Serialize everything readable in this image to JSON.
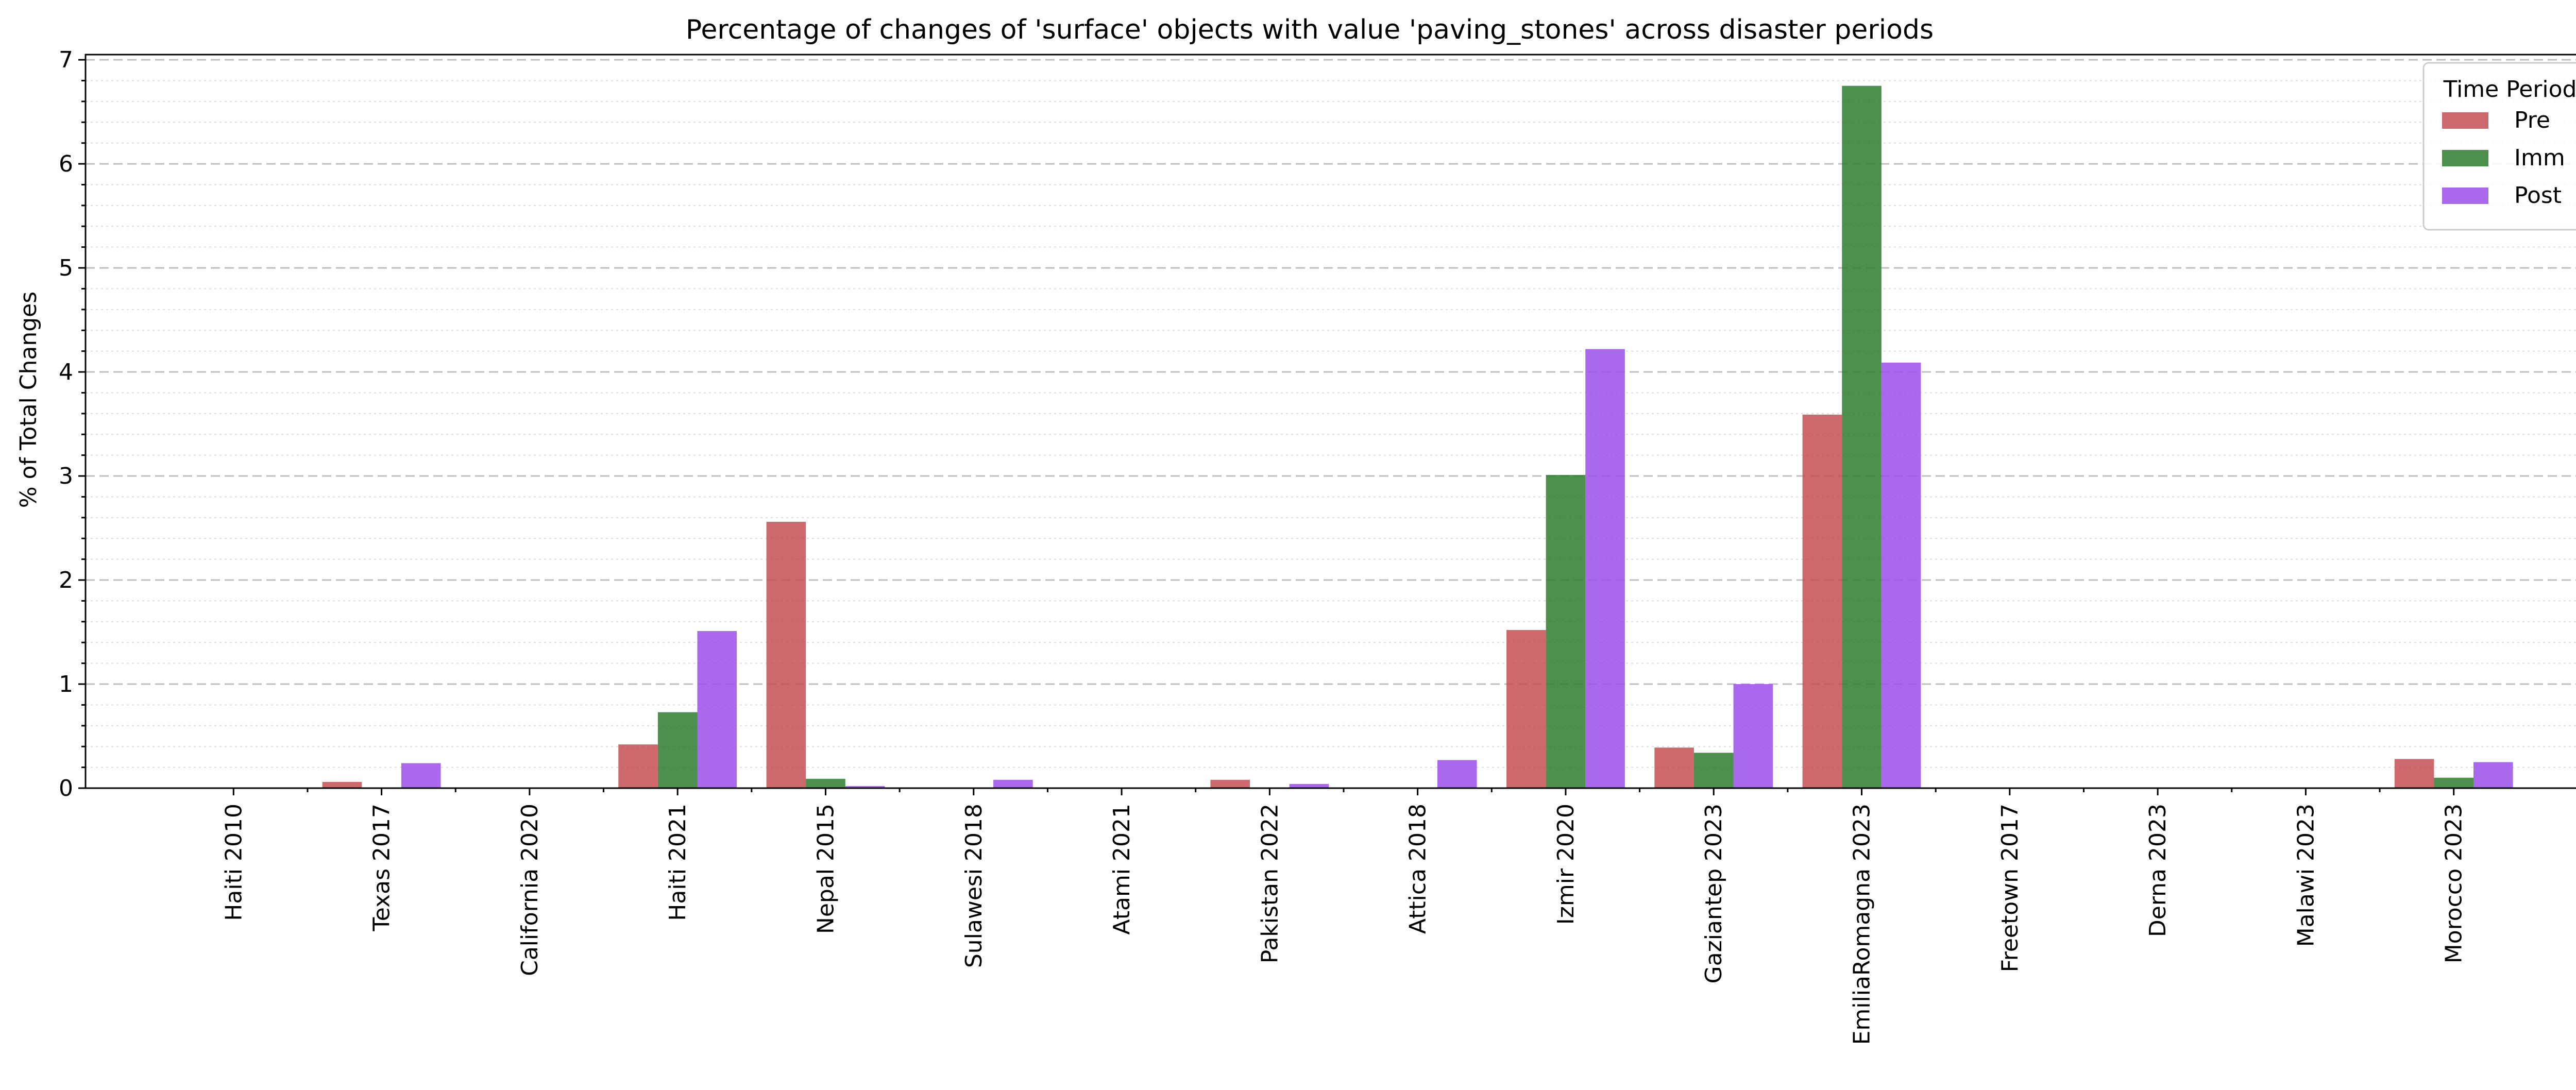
{
  "chart_data": {
    "type": "bar",
    "title": "Percentage of changes of 'surface' objects with value 'paving_stones' across disaster periods",
    "xlabel": "",
    "ylabel": "% of Total Changes",
    "ylim": [
      0,
      7.05
    ],
    "yticks": [
      0,
      1,
      2,
      3,
      4,
      5,
      6,
      7
    ],
    "grid": true,
    "legend_title": "Time Period",
    "legend_position": "top-right",
    "categories": [
      "Haiti 2010",
      "Texas 2017",
      "California 2020",
      "Haiti 2021",
      "Nepal 2015",
      "Sulawesi 2018",
      "Atami 2021",
      "Pakistan 2022",
      "Attica 2018",
      "Izmir 2020",
      "Gaziantep 2023",
      "EmiliaRomagna 2023",
      "Freetown 2017",
      "Derna 2023",
      "Malawi 2023",
      "Morocco 2023"
    ],
    "series": [
      {
        "name": "Pre",
        "color": "#c44e52",
        "values": [
          0,
          0.06,
          0,
          0.42,
          2.56,
          0,
          0,
          0.08,
          0,
          1.52,
          0.39,
          3.59,
          0,
          0,
          0,
          0.28
        ]
      },
      {
        "name": "Imm",
        "color": "#2e7d2e",
        "values": [
          0,
          0,
          0,
          0.73,
          0.09,
          0,
          0,
          0,
          0,
          3.01,
          0.34,
          6.75,
          0,
          0,
          0,
          0.1
        ]
      },
      {
        "name": "Post",
        "color": "#9b4dea",
        "values": [
          0,
          0.24,
          0,
          1.51,
          0.02,
          0.08,
          0,
          0.04,
          0.27,
          4.22,
          1.0,
          4.09,
          0,
          0,
          0,
          0.25
        ]
      }
    ]
  }
}
